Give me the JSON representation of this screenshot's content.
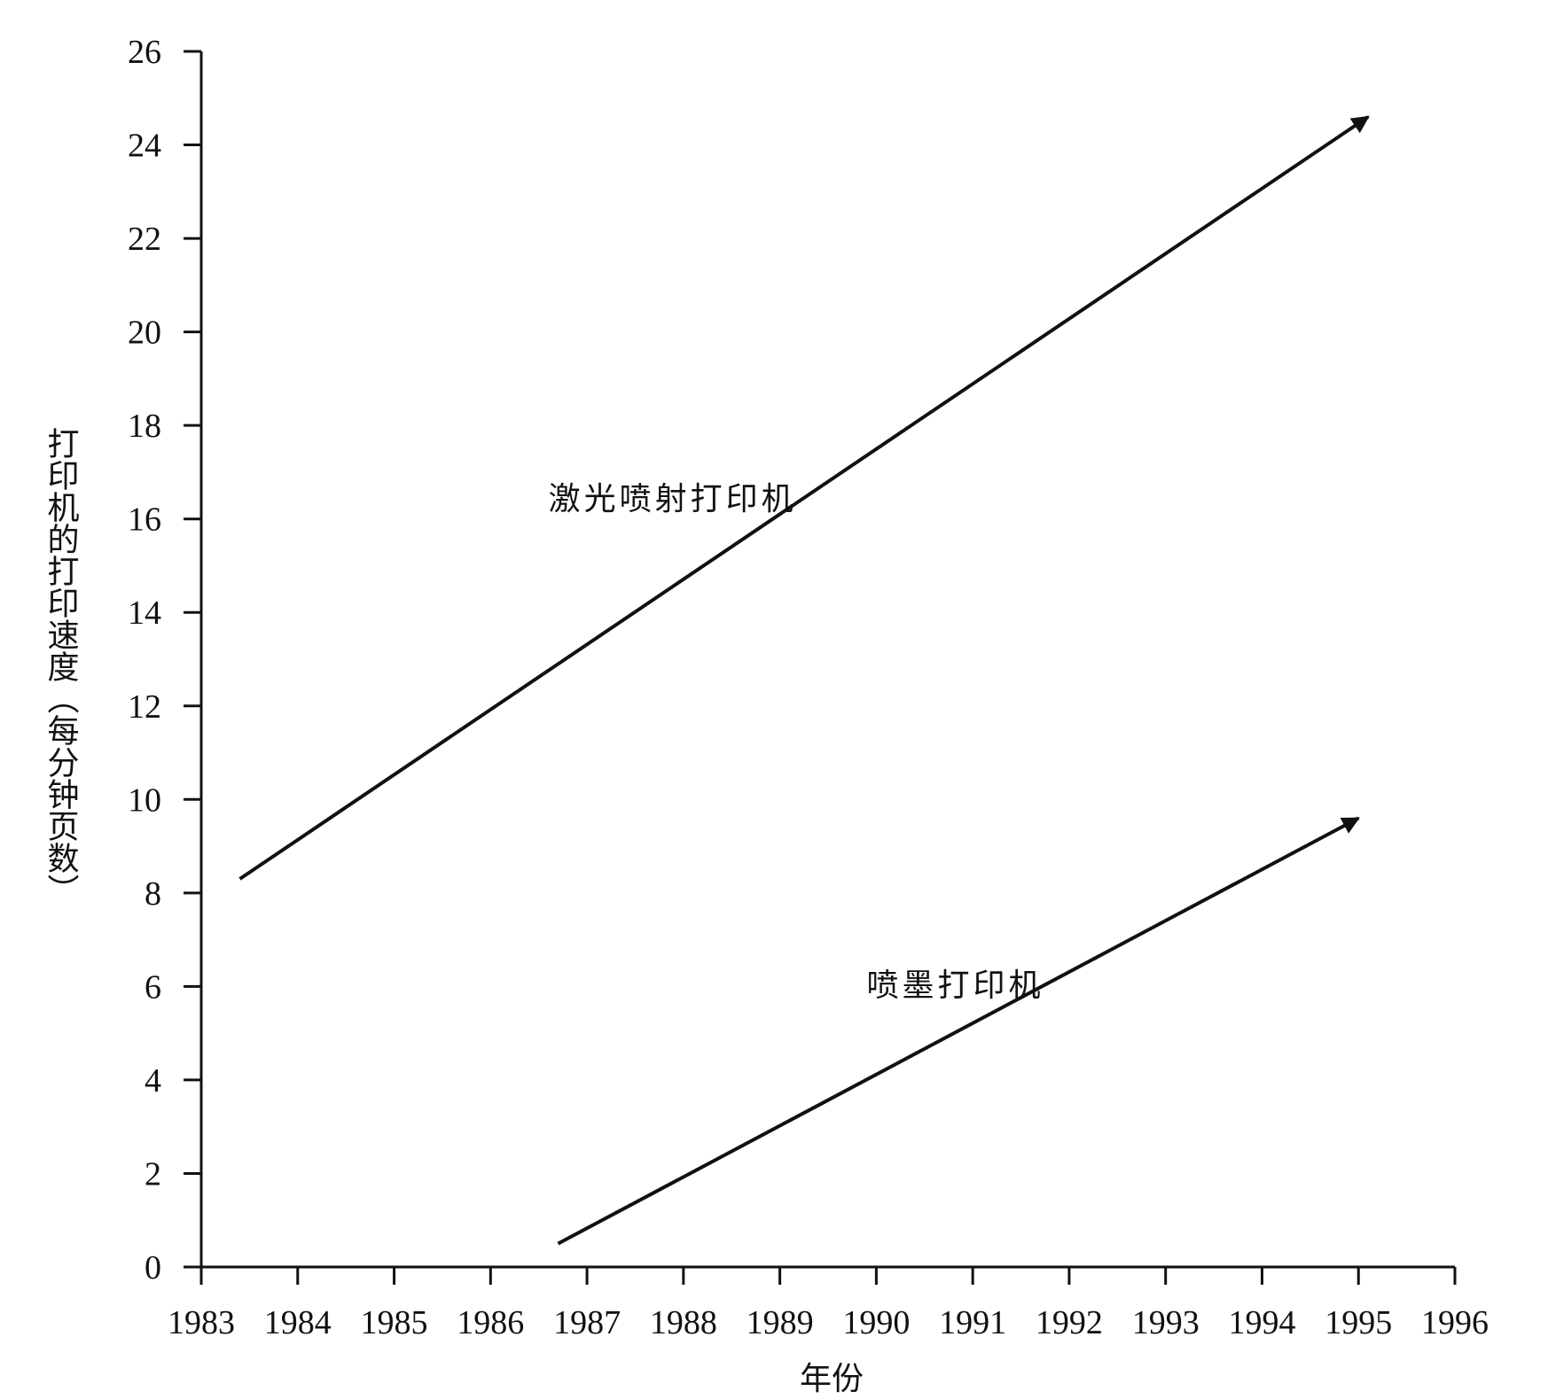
{
  "chart_data": {
    "type": "line",
    "title": "",
    "xlabel": "年份",
    "ylabel": "打印机的打印速度（每分钟页数）",
    "xlim": [
      1983,
      1996
    ],
    "ylim": [
      0,
      26
    ],
    "x_ticks": [
      1983,
      1984,
      1985,
      1986,
      1987,
      1988,
      1989,
      1990,
      1991,
      1992,
      1993,
      1994,
      1995,
      1996
    ],
    "y_ticks": [
      0,
      2,
      4,
      6,
      8,
      10,
      12,
      14,
      16,
      18,
      20,
      22,
      24,
      26
    ],
    "grid": false,
    "series": [
      {
        "name": "激光喷射打印机",
        "x": [
          1983.4,
          1995.1
        ],
        "y": [
          8.3,
          24.6
        ],
        "arrow": true,
        "color": "#111111"
      },
      {
        "name": "喷墨打印机",
        "x": [
          1986.7,
          1995.0
        ],
        "y": [
          0.5,
          9.6
        ],
        "arrow": true,
        "color": "#111111"
      }
    ],
    "annotations": [
      {
        "text": "激光喷射打印机",
        "x": 1986.6,
        "y": 16.2
      },
      {
        "text": "喷墨打印机",
        "x": 1989.9,
        "y": 5.8
      }
    ]
  }
}
